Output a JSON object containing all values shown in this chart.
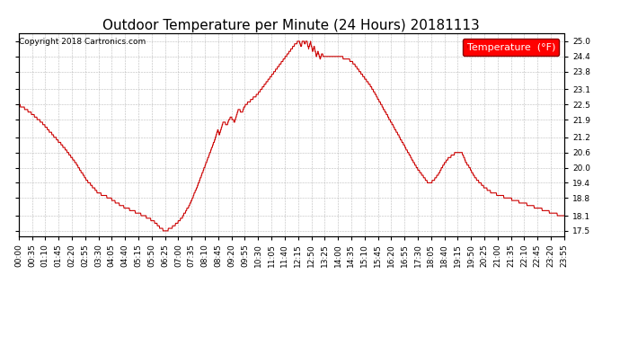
{
  "title": "Outdoor Temperature per Minute (24 Hours) 20181113",
  "copyright": "Copyright 2018 Cartronics.com",
  "legend_label": "Temperature  (°F)",
  "line_color": "#cc0000",
  "bg_color": "#ffffff",
  "plot_bg_color": "#ffffff",
  "yticks": [
    17.5,
    18.1,
    18.8,
    19.4,
    20.0,
    20.6,
    21.2,
    21.9,
    22.5,
    23.1,
    23.8,
    24.4,
    25.0
  ],
  "ylim": [
    17.3,
    25.3
  ],
  "xtick_labels": [
    "00:00",
    "00:35",
    "01:10",
    "01:45",
    "02:20",
    "02:55",
    "03:30",
    "04:05",
    "04:40",
    "05:15",
    "05:50",
    "06:25",
    "07:00",
    "07:35",
    "08:10",
    "08:45",
    "09:20",
    "09:55",
    "10:30",
    "11:05",
    "11:40",
    "12:15",
    "12:50",
    "13:25",
    "14:00",
    "14:35",
    "15:10",
    "15:45",
    "16:20",
    "16:55",
    "17:30",
    "18:05",
    "18:40",
    "19:15",
    "19:50",
    "20:25",
    "21:00",
    "21:35",
    "22:10",
    "22:45",
    "23:20",
    "23:55"
  ],
  "title_fontsize": 11,
  "tick_fontsize": 6.5,
  "legend_fontsize": 8,
  "keypoints": [
    [
      0,
      22.5
    ],
    [
      30,
      22.2
    ],
    [
      60,
      21.8
    ],
    [
      90,
      21.3
    ],
    [
      120,
      20.8
    ],
    [
      150,
      20.2
    ],
    [
      180,
      19.5
    ],
    [
      210,
      19.0
    ],
    [
      240,
      18.8
    ],
    [
      270,
      18.5
    ],
    [
      300,
      18.3
    ],
    [
      330,
      18.1
    ],
    [
      355,
      17.9
    ],
    [
      375,
      17.6
    ],
    [
      385,
      17.5
    ],
    [
      395,
      17.55
    ],
    [
      410,
      17.7
    ],
    [
      430,
      18.0
    ],
    [
      450,
      18.5
    ],
    [
      470,
      19.2
    ],
    [
      490,
      20.0
    ],
    [
      510,
      20.8
    ],
    [
      520,
      21.2
    ],
    [
      525,
      21.5
    ],
    [
      530,
      21.3
    ],
    [
      535,
      21.6
    ],
    [
      540,
      21.8
    ],
    [
      550,
      21.7
    ],
    [
      555,
      21.9
    ],
    [
      560,
      22.0
    ],
    [
      570,
      21.8
    ],
    [
      575,
      22.1
    ],
    [
      580,
      22.3
    ],
    [
      590,
      22.2
    ],
    [
      595,
      22.4
    ],
    [
      600,
      22.5
    ],
    [
      615,
      22.7
    ],
    [
      630,
      22.9
    ],
    [
      645,
      23.2
    ],
    [
      660,
      23.5
    ],
    [
      675,
      23.8
    ],
    [
      690,
      24.1
    ],
    [
      705,
      24.4
    ],
    [
      720,
      24.7
    ],
    [
      730,
      24.9
    ],
    [
      740,
      25.0
    ],
    [
      745,
      24.8
    ],
    [
      750,
      25.05
    ],
    [
      755,
      24.9
    ],
    [
      760,
      25.05
    ],
    [
      765,
      24.7
    ],
    [
      770,
      25.0
    ],
    [
      775,
      24.6
    ],
    [
      780,
      24.8
    ],
    [
      785,
      24.4
    ],
    [
      790,
      24.6
    ],
    [
      795,
      24.3
    ],
    [
      800,
      24.5
    ],
    [
      805,
      24.4
    ],
    [
      810,
      24.45
    ],
    [
      815,
      24.4
    ],
    [
      820,
      24.42
    ],
    [
      825,
      24.4
    ],
    [
      830,
      24.38
    ],
    [
      840,
      24.4
    ],
    [
      855,
      24.35
    ],
    [
      870,
      24.3
    ],
    [
      885,
      24.1
    ],
    [
      900,
      23.8
    ],
    [
      915,
      23.5
    ],
    [
      930,
      23.2
    ],
    [
      945,
      22.8
    ],
    [
      960,
      22.4
    ],
    [
      975,
      22.0
    ],
    [
      990,
      21.6
    ],
    [
      1005,
      21.2
    ],
    [
      1020,
      20.8
    ],
    [
      1035,
      20.4
    ],
    [
      1050,
      20.0
    ],
    [
      1065,
      19.7
    ],
    [
      1080,
      19.4
    ],
    [
      1085,
      19.4
    ],
    [
      1090,
      19.45
    ],
    [
      1095,
      19.5
    ],
    [
      1100,
      19.6
    ],
    [
      1110,
      19.8
    ],
    [
      1120,
      20.1
    ],
    [
      1135,
      20.4
    ],
    [
      1150,
      20.55
    ],
    [
      1160,
      20.6
    ],
    [
      1170,
      20.55
    ],
    [
      1175,
      20.4
    ],
    [
      1180,
      20.2
    ],
    [
      1185,
      20.1
    ],
    [
      1190,
      20.0
    ],
    [
      1195,
      19.85
    ],
    [
      1200,
      19.7
    ],
    [
      1210,
      19.5
    ],
    [
      1220,
      19.35
    ],
    [
      1230,
      19.2
    ],
    [
      1240,
      19.1
    ],
    [
      1250,
      19.0
    ],
    [
      1260,
      18.95
    ],
    [
      1270,
      18.9
    ],
    [
      1280,
      18.85
    ],
    [
      1290,
      18.8
    ],
    [
      1300,
      18.75
    ],
    [
      1310,
      18.7
    ],
    [
      1320,
      18.65
    ],
    [
      1330,
      18.6
    ],
    [
      1340,
      18.55
    ],
    [
      1350,
      18.5
    ],
    [
      1360,
      18.45
    ],
    [
      1370,
      18.4
    ],
    [
      1380,
      18.35
    ],
    [
      1390,
      18.3
    ],
    [
      1400,
      18.25
    ],
    [
      1410,
      18.2
    ],
    [
      1420,
      18.15
    ],
    [
      1439,
      18.1
    ]
  ]
}
